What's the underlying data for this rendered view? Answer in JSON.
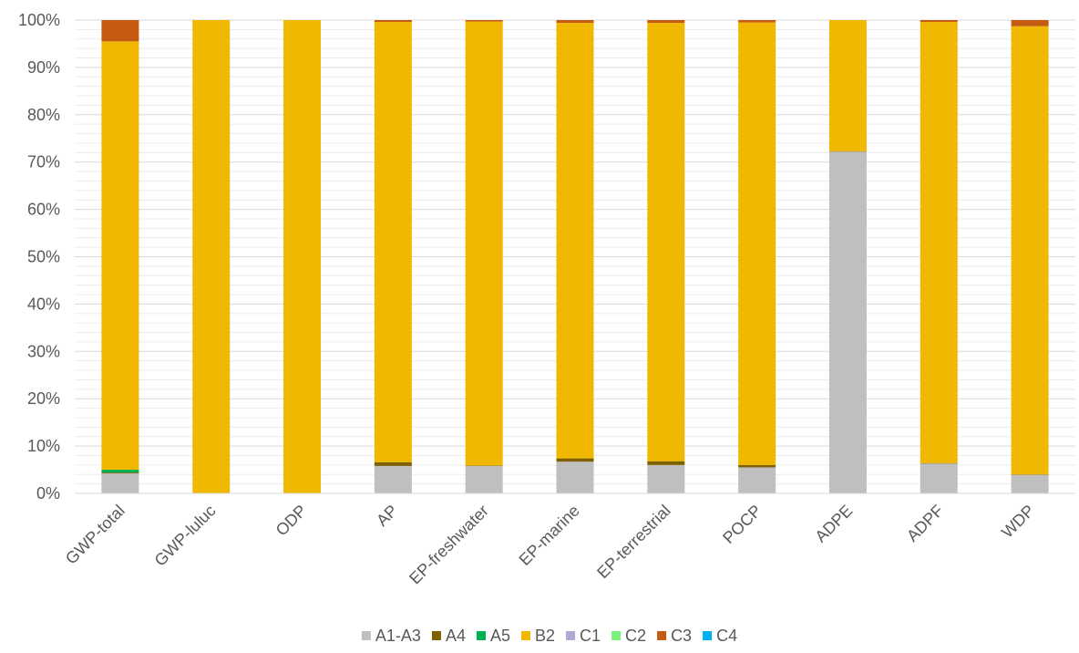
{
  "chart_data": {
    "type": "bar",
    "stacked": true,
    "normalized": true,
    "title": "",
    "xlabel": "",
    "ylabel": "",
    "ylim": [
      0,
      100
    ],
    "y_ticks": [
      "0%",
      "10%",
      "20%",
      "30%",
      "40%",
      "50%",
      "60%",
      "70%",
      "80%",
      "90%",
      "100%"
    ],
    "grid": true,
    "legend_position": "bottom",
    "categories": [
      "GWP-total",
      "GWP-luluc",
      "ODP",
      "AP",
      "EP-freshwater",
      "EP-marine",
      "EP-terrestrial",
      "POCP",
      "ADPE",
      "ADPF",
      "WDP"
    ],
    "series": [
      {
        "name": "A1-A3",
        "color": "#bfbfbf",
        "values": [
          4.2,
          0,
          0,
          5.8,
          5.8,
          6.7,
          6.0,
          5.5,
          72.2,
          6.3,
          3.9
        ]
      },
      {
        "name": "A4",
        "color": "#7f6000",
        "values": [
          0.2,
          0,
          0,
          0.8,
          0.1,
          0.7,
          0.8,
          0.5,
          0.1,
          0.1,
          0.1
        ]
      },
      {
        "name": "A5",
        "color": "#00b050",
        "values": [
          0.6,
          0,
          0,
          0,
          0,
          0,
          0,
          0,
          0,
          0,
          0
        ]
      },
      {
        "name": "B2",
        "color": "#f0b800",
        "values": [
          90.5,
          100,
          100,
          93.0,
          93.8,
          92.0,
          92.6,
          93.5,
          27.7,
          93.2,
          94.7
        ]
      },
      {
        "name": "C1",
        "color": "#b4a7d6",
        "values": [
          0,
          0,
          0,
          0,
          0,
          0,
          0,
          0,
          0,
          0,
          0
        ]
      },
      {
        "name": "C2",
        "color": "#7cf07c",
        "values": [
          0,
          0,
          0,
          0,
          0,
          0,
          0,
          0,
          0,
          0,
          0
        ]
      },
      {
        "name": "C3",
        "color": "#c55a11",
        "values": [
          4.5,
          0,
          0,
          0.4,
          0.3,
          0.6,
          0.6,
          0.5,
          0,
          0.4,
          1.3
        ]
      },
      {
        "name": "C4",
        "color": "#00b0f0",
        "values": [
          0,
          0,
          0,
          0,
          0,
          0,
          0,
          0,
          0,
          0,
          0
        ]
      }
    ]
  }
}
